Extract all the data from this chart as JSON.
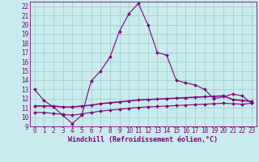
{
  "xlabel": "Windchill (Refroidissement éolien,°C)",
  "background_color": "#c8ecec",
  "grid_color": "#a0c8c8",
  "line_color": "#800080",
  "x_values": [
    0,
    1,
    2,
    3,
    4,
    5,
    6,
    7,
    8,
    9,
    10,
    11,
    12,
    13,
    14,
    15,
    16,
    17,
    18,
    19,
    20,
    21,
    22,
    23
  ],
  "line1_y": [
    13.0,
    11.8,
    11.1,
    10.2,
    9.3,
    10.2,
    13.9,
    15.0,
    16.5,
    19.3,
    21.2,
    22.3,
    20.0,
    17.0,
    16.7,
    14.0,
    13.7,
    13.5,
    13.0,
    12.0,
    12.2,
    12.5,
    12.3,
    11.5
  ],
  "line2_y": [
    11.2,
    11.2,
    11.2,
    11.1,
    11.1,
    11.2,
    11.3,
    11.45,
    11.55,
    11.65,
    11.75,
    11.85,
    11.9,
    11.95,
    12.0,
    12.05,
    12.1,
    12.15,
    12.2,
    12.25,
    12.3,
    11.9,
    11.8,
    11.7
  ],
  "line3_y": [
    10.5,
    10.5,
    10.4,
    10.3,
    10.2,
    10.35,
    10.5,
    10.65,
    10.75,
    10.85,
    10.95,
    11.05,
    11.1,
    11.15,
    11.2,
    11.25,
    11.3,
    11.35,
    11.4,
    11.45,
    11.5,
    11.45,
    11.4,
    11.5
  ],
  "ylim": [
    9,
    22.5
  ],
  "xlim": [
    -0.5,
    23.5
  ],
  "yticks": [
    9,
    10,
    11,
    12,
    13,
    14,
    15,
    16,
    17,
    18,
    19,
    20,
    21,
    22
  ],
  "xticks": [
    0,
    1,
    2,
    3,
    4,
    5,
    6,
    7,
    8,
    9,
    10,
    11,
    12,
    13,
    14,
    15,
    16,
    17,
    18,
    19,
    20,
    21,
    22,
    23
  ],
  "tick_fontsize": 5.5,
  "xlabel_fontsize": 6.0,
  "marker_size": 2.0,
  "linewidth": 0.8
}
